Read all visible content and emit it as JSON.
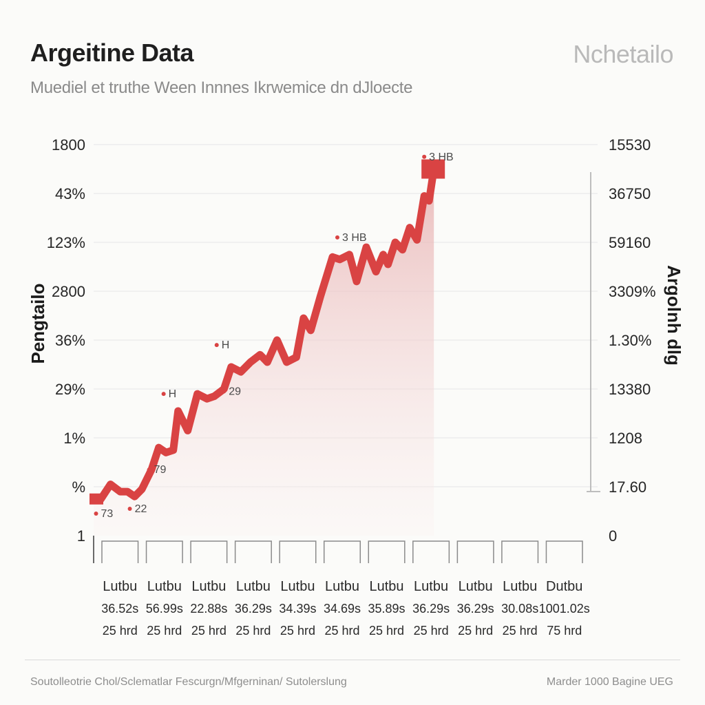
{
  "header": {
    "title": "Argeitine Data",
    "brand": "Nchetailo",
    "subtitle": "Muediel et truthe Ween Innnes Ikrwemice dn dJloecte"
  },
  "footer": {
    "source": "Soutolleotrie Chol/Sclematlar Fescurgn/Mfgerninan/ Sutolerslung",
    "note": "Marder 1000 Bagine UEG"
  },
  "colors": {
    "series": "#d94343",
    "area": "#e9b3b3",
    "grid": "#e6e6e6"
  },
  "chart_data": {
    "type": "area",
    "title": "Argeitine Data",
    "ylabel": "Pengtailo",
    "y2label": "Argolnh dlg",
    "left_ticks": [
      "1800",
      "43%",
      "123%",
      "2800",
      "36%",
      "29%",
      "1%",
      "%",
      "1"
    ],
    "right_ticks": [
      "15530",
      "36750",
      "59160",
      "3309%",
      "1.30%",
      "13380",
      "1208",
      "17.60",
      "0"
    ],
    "categories": [
      {
        "line1": "Lutbu",
        "line2": "36.52s",
        "line3": "25 hrd"
      },
      {
        "line1": "Lutbu",
        "line2": "56.99s",
        "line3": "25 hrd"
      },
      {
        "line1": "Lutbu",
        "line2": "22.88s",
        "line3": "25 hrd"
      },
      {
        "line1": "Lutbu",
        "line2": "36.29s",
        "line3": "25 hrd"
      },
      {
        "line1": "Lutbu",
        "line2": "34.39s",
        "line3": "25 hrd"
      },
      {
        "line1": "Lutbu",
        "line2": "34.69s",
        "line3": "25 hrd"
      },
      {
        "line1": "Lutbu",
        "line2": "35.89s",
        "line3": "25 hrd"
      },
      {
        "line1": "Lutbu",
        "line2": "36.29s",
        "line3": "25 hrd"
      },
      {
        "line1": "Lutbu",
        "line2": "36.29s",
        "line3": "25 hrd"
      },
      {
        "line1": "Lutbu",
        "line2": "30.08s",
        "line3": "25 hrd"
      },
      {
        "line1": "Dutbu",
        "line2": "1001.02s",
        "line3": "75 hrd"
      }
    ],
    "x_range": [
      0,
      10.3
    ],
    "y_range": [
      0,
      8
    ],
    "series": [
      {
        "points": [
          [
            0,
            0.75
          ],
          [
            0.15,
            0.75
          ],
          [
            0.35,
            1.05
          ],
          [
            0.55,
            0.9
          ],
          [
            0.7,
            0.9
          ],
          [
            0.85,
            0.8
          ],
          [
            1.0,
            0.95
          ],
          [
            1.2,
            1.35
          ],
          [
            1.35,
            1.8
          ],
          [
            1.5,
            1.7
          ],
          [
            1.65,
            1.75
          ],
          [
            1.75,
            2.55
          ],
          [
            1.95,
            2.15
          ],
          [
            2.15,
            2.9
          ],
          [
            2.35,
            2.8
          ],
          [
            2.5,
            2.85
          ],
          [
            2.7,
            3.0
          ],
          [
            2.85,
            3.45
          ],
          [
            3.05,
            3.35
          ],
          [
            3.25,
            3.55
          ],
          [
            3.45,
            3.7
          ],
          [
            3.6,
            3.55
          ],
          [
            3.8,
            4.0
          ],
          [
            4.0,
            3.55
          ],
          [
            4.2,
            3.65
          ],
          [
            4.35,
            4.45
          ],
          [
            4.5,
            4.2
          ],
          [
            4.7,
            4.9
          ],
          [
            4.95,
            5.7
          ],
          [
            5.1,
            5.65
          ],
          [
            5.3,
            5.75
          ],
          [
            5.45,
            5.2
          ],
          [
            5.65,
            5.9
          ],
          [
            5.85,
            5.4
          ],
          [
            6.0,
            5.75
          ],
          [
            6.1,
            5.55
          ],
          [
            6.25,
            6.0
          ],
          [
            6.4,
            5.85
          ],
          [
            6.55,
            6.3
          ],
          [
            6.7,
            6.05
          ],
          [
            6.85,
            6.95
          ],
          [
            6.95,
            6.85
          ],
          [
            7.05,
            7.5
          ]
        ]
      }
    ],
    "annotations": [
      {
        "x": 0.05,
        "y": 0.45,
        "text": "73"
      },
      {
        "x": 0.75,
        "y": 0.55,
        "text": "22"
      },
      {
        "x": 1.15,
        "y": 1.35,
        "text": "79"
      },
      {
        "x": 2.7,
        "y": 2.95,
        "text": "29"
      },
      {
        "x": 2.55,
        "y": 3.9,
        "text": "H"
      },
      {
        "x": 1.45,
        "y": 2.9,
        "text": "H"
      },
      {
        "x": 5.05,
        "y": 6.1,
        "text": "3 HB"
      },
      {
        "x": 6.85,
        "y": 7.75,
        "text": "3 HB"
      }
    ],
    "grid": true
  }
}
